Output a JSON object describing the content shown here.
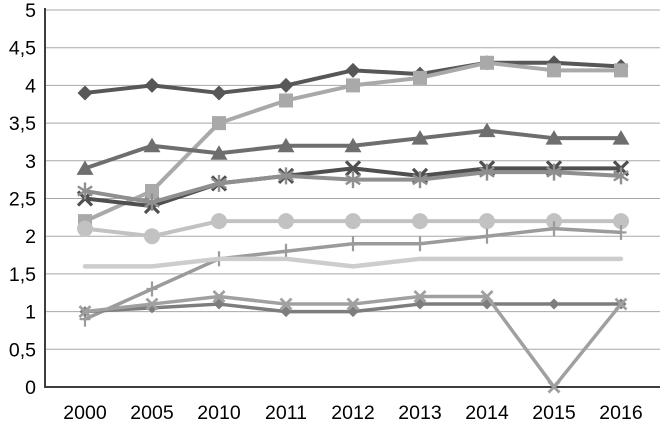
{
  "chart_data": {
    "type": "line",
    "title": "",
    "xlabel": "",
    "ylabel": "",
    "grid": true,
    "legend_position": "none",
    "categories": [
      "2000",
      "2005",
      "2010",
      "2011",
      "2012",
      "2013",
      "2014",
      "2015",
      "2016"
    ],
    "y_axis": {
      "min": 0,
      "max": 5,
      "step": 0.5,
      "decimal_separator": ",",
      "tick_labels": [
        "0",
        "0,5",
        "1",
        "1,5",
        "2",
        "2,5",
        "3",
        "3,5",
        "4",
        "4,5",
        "5"
      ]
    },
    "colors": {
      "gridline": "#a8a8a8",
      "axis": "#3d3d3d",
      "label_text": "#000000"
    },
    "series": [
      {
        "name": "dark-diamond",
        "marker": "diamond",
        "color": "#575757",
        "line_width": 4,
        "values": [
          3.9,
          4.0,
          3.9,
          4.0,
          4.2,
          4.15,
          4.3,
          4.3,
          4.25
        ]
      },
      {
        "name": "gray-square",
        "marker": "square",
        "color": "#a9a9a9",
        "line_width": 4,
        "values": [
          2.2,
          2.6,
          3.5,
          3.8,
          4.0,
          4.1,
          4.3,
          4.2,
          4.2
        ]
      },
      {
        "name": "dark-triangle",
        "marker": "triangle",
        "color": "#6e6e6e",
        "line_width": 4,
        "values": [
          2.9,
          3.2,
          3.1,
          3.2,
          3.2,
          3.3,
          3.4,
          3.3,
          3.3
        ]
      },
      {
        "name": "dark-x",
        "marker": "x",
        "color": "#4f4f4f",
        "line_width": 4,
        "values": [
          2.5,
          2.4,
          2.7,
          2.8,
          2.9,
          2.8,
          2.9,
          2.9,
          2.9
        ]
      },
      {
        "name": "asterisk",
        "marker": "asterisk",
        "color": "#8f8f8f",
        "line_width": 4,
        "values": [
          2.6,
          2.45,
          2.7,
          2.8,
          2.75,
          2.75,
          2.85,
          2.85,
          2.8
        ]
      },
      {
        "name": "light-circle",
        "marker": "circle",
        "color": "#c2c2c2",
        "line_width": 4,
        "values": [
          2.1,
          2.0,
          2.2,
          2.2,
          2.2,
          2.2,
          2.2,
          2.2,
          2.2
        ]
      },
      {
        "name": "plus",
        "marker": "plus",
        "color": "#9b9b9b",
        "line_width": 3.5,
        "values": [
          0.9,
          1.3,
          1.7,
          1.8,
          1.9,
          1.9,
          2.0,
          2.1,
          2.05
        ]
      },
      {
        "name": "pale-flat",
        "marker": "none",
        "color": "#cdcdcd",
        "line_width": 4.5,
        "values": [
          1.6,
          1.6,
          1.7,
          1.7,
          1.6,
          1.7,
          1.7,
          1.7,
          1.7
        ]
      },
      {
        "name": "small-diamond",
        "marker": "diamond-small",
        "color": "#7d7d7d",
        "line_width": 3.5,
        "values": [
          1.0,
          1.05,
          1.1,
          1.0,
          1.0,
          1.1,
          1.1,
          1.1,
          1.1
        ]
      },
      {
        "name": "low-x-dip",
        "marker": "x-small",
        "color": "#a0a0a0",
        "line_width": 3.5,
        "values": [
          1.0,
          1.1,
          1.2,
          1.1,
          1.1,
          1.2,
          1.2,
          0.0,
          1.1
        ]
      }
    ]
  }
}
